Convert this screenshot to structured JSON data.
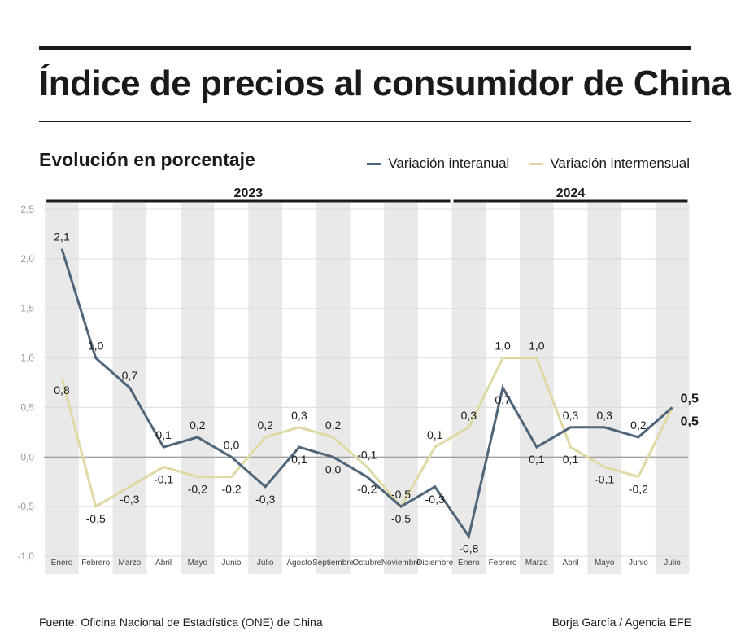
{
  "header": {
    "title": "Índice de precios al consumidor de China",
    "subtitle": "Evolución en porcentaje"
  },
  "footer": {
    "source": "Fuente: Oficina Nacional de Estadística (ONE) de China",
    "credit": "Borja García / Agencia EFE"
  },
  "colors": {
    "interanual": "#4f6579",
    "intermensual": "#e0d9a4",
    "band": "#e9e9e9",
    "grid": "#dcdcdc"
  },
  "chart_data": {
    "type": "line",
    "years": [
      {
        "label": "2023",
        "start": 0,
        "end": 11
      },
      {
        "label": "2024",
        "start": 12,
        "end": 18
      }
    ],
    "categories": [
      "Enero",
      "Febrero",
      "Marzo",
      "Abril",
      "Mayo",
      "Junio",
      "Julio",
      "Agosto",
      "Septiembre",
      "Octubre",
      "Noviembre",
      "Diciembre",
      "Enero",
      "Febrero",
      "Marzo",
      "Abril",
      "Mayo",
      "Junio",
      "Julio"
    ],
    "yticks": [
      "2,5",
      "2,0",
      "1,5",
      "1,0",
      "0,5",
      "0,0",
      "-0,5",
      "-1,0"
    ],
    "ylim": [
      -1.0,
      2.5
    ],
    "grid": true,
    "legend_position": "top-right",
    "series": [
      {
        "name": "Variación interanual",
        "values": [
          2.1,
          1.0,
          0.7,
          0.1,
          0.2,
          0.0,
          -0.3,
          0.1,
          0.0,
          -0.2,
          -0.5,
          -0.3,
          -0.8,
          0.7,
          0.1,
          0.3,
          0.3,
          0.2,
          0.5
        ],
        "labels": [
          "2,1",
          "1,0",
          "0,7",
          "0,1",
          "0,2",
          "0,0",
          "-0,3",
          "0,1",
          "0,0",
          "-0,2",
          "-0,5",
          "-0,3",
          "-0,8",
          "0,7",
          "0,1",
          "0,3",
          "0,3",
          "0,2",
          "0,5"
        ]
      },
      {
        "name": "Variación intermensual",
        "values": [
          0.8,
          -0.5,
          -0.3,
          -0.1,
          -0.2,
          -0.2,
          0.2,
          0.3,
          0.2,
          -0.1,
          -0.5,
          0.1,
          0.3,
          1.0,
          1.0,
          0.1,
          -0.1,
          -0.2,
          0.5
        ],
        "labels": [
          "0,8",
          "-0,5",
          "-0,3",
          "-0,1",
          "-0,2",
          "-0,2",
          "0,2",
          "0,3",
          "0,2",
          "-0,1",
          "-0,5",
          "0,1",
          "0,3",
          "1,0",
          "1,0",
          "0,1",
          "-0,1",
          "-0,2",
          "0,5"
        ]
      }
    ]
  }
}
